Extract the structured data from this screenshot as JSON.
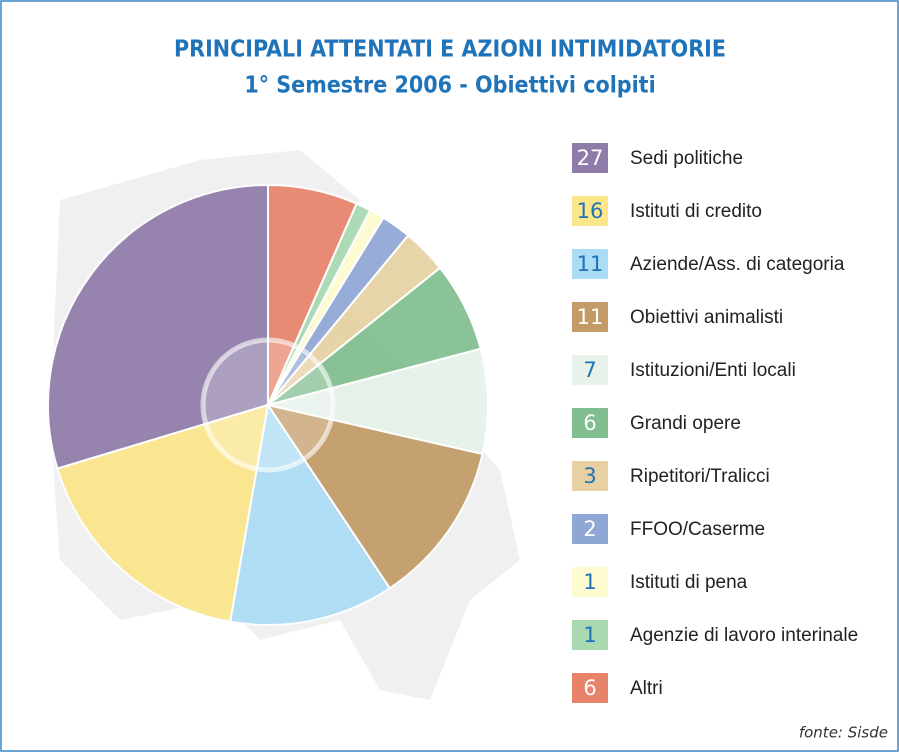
{
  "chart_data": {
    "type": "pie",
    "title": "PRINCIPALI ATTENTATI E AZIONI INTIMIDATORIE",
    "subtitle": "1° Semestre 2006 - Obiettivi colpiti",
    "categories": [
      "Sedi politiche",
      "Istituti di credito",
      "Aziende/Ass. di categoria",
      "Obiettivi animalisti",
      "Istituzioni/Enti locali",
      "Grandi opere",
      "Ripetitori/Tralicci",
      "FFOO/Caserme",
      "Istituti di pena",
      "Agenzie di lavoro interinale",
      "Altri"
    ],
    "values": [
      27,
      16,
      11,
      11,
      7,
      6,
      3,
      2,
      1,
      1,
      6
    ],
    "colors": [
      "#8f7ba9",
      "#fbe68a",
      "#abdcf5",
      "#c39b66",
      "#e6f2ea",
      "#80be8f",
      "#e7d1a2",
      "#8fa7d4",
      "#fdfbcf",
      "#a8d9b1",
      "#e8836b"
    ],
    "source": "fonte: Sisde"
  }
}
